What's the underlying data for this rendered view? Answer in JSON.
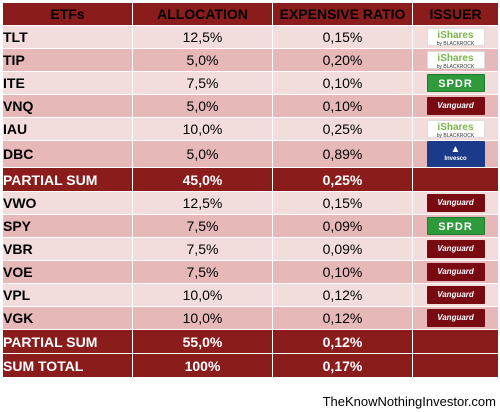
{
  "header": {
    "etfs": "ETFs",
    "allocation": "ALLOCATION",
    "ratio": "EXPENSIVE RATIO",
    "issuer": "ISSUER"
  },
  "group1": [
    {
      "sym": "TLT",
      "alloc": "12,5%",
      "ratio": "0,15%",
      "issuer": "ishares",
      "issuer_text": "iShares",
      "issuer_sub": "by BLACKROCK"
    },
    {
      "sym": "TIP",
      "alloc": "5,0%",
      "ratio": "0,20%",
      "issuer": "ishares",
      "issuer_text": "iShares",
      "issuer_sub": "by BLACKROCK"
    },
    {
      "sym": "ITE",
      "alloc": "7,5%",
      "ratio": "0,10%",
      "issuer": "spdr",
      "issuer_text": "SPDR"
    },
    {
      "sym": "VNQ",
      "alloc": "5,0%",
      "ratio": "0,10%",
      "issuer": "vanguard",
      "issuer_text": "Vanguard"
    },
    {
      "sym": "IAU",
      "alloc": "10,0%",
      "ratio": "0,25%",
      "issuer": "ishares",
      "issuer_text": "iShares",
      "issuer_sub": "by BLACKROCK"
    },
    {
      "sym": "DBC",
      "alloc": "5,0%",
      "ratio": "0,89%",
      "issuer": "invesco",
      "issuer_text": "Invesco"
    }
  ],
  "partial1": {
    "label": "PARTIAL SUM",
    "alloc": "45,0%",
    "ratio": "0,25%"
  },
  "group2": [
    {
      "sym": "VWO",
      "alloc": "12,5%",
      "ratio": "0,15%",
      "issuer": "vanguard",
      "issuer_text": "Vanguard"
    },
    {
      "sym": "SPY",
      "alloc": "7,5%",
      "ratio": "0,09%",
      "issuer": "spdr",
      "issuer_text": "SPDR"
    },
    {
      "sym": "VBR",
      "alloc": "7,5%",
      "ratio": "0,09%",
      "issuer": "vanguard",
      "issuer_text": "Vanguard"
    },
    {
      "sym": "VOE",
      "alloc": "7,5%",
      "ratio": "0,10%",
      "issuer": "vanguard",
      "issuer_text": "Vanguard"
    },
    {
      "sym": "VPL",
      "alloc": "10,0%",
      "ratio": "0,12%",
      "issuer": "vanguard",
      "issuer_text": "Vanguard"
    },
    {
      "sym": "VGK",
      "alloc": "10,0%",
      "ratio": "0,12%",
      "issuer": "vanguard",
      "issuer_text": "Vanguard"
    }
  ],
  "partial2": {
    "label": "PARTIAL SUM",
    "alloc": "55,0%",
    "ratio": "0,12%"
  },
  "total": {
    "label": "SUM TOTAL",
    "alloc": "100%",
    "ratio": "0,17%"
  },
  "footer": "TheKnowNothingInvestor.com",
  "colors": {
    "header_bg": "#8b1c1c",
    "row_light": "#f2dcdc",
    "row_dark": "#e6b8b8"
  }
}
